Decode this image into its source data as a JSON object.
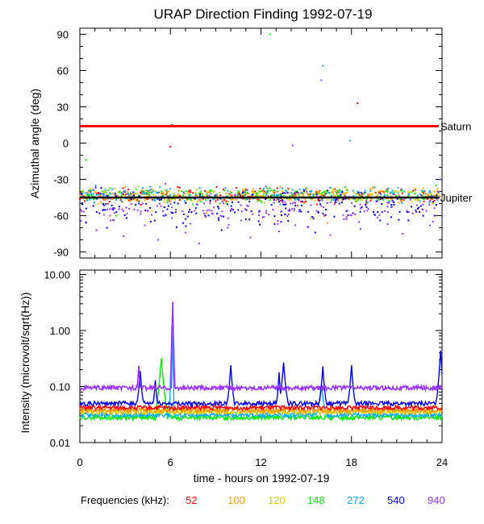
{
  "chart_data": [
    {
      "type": "scatter",
      "title": "URAP Direction Finding  1992-07-19",
      "ylabel": "Azimuthal angle (deg)",
      "xlim": [
        0,
        24
      ],
      "ylim": [
        -95,
        95
      ],
      "yticks": [
        90,
        60,
        30,
        0,
        -30,
        -60,
        -90
      ],
      "xticks": [
        0,
        6,
        12,
        18,
        24
      ],
      "reference_lines": [
        {
          "name": "Saturn",
          "value": 14,
          "color": "#ff0000"
        },
        {
          "name": "Jupiter",
          "value": -45,
          "color": "#000000"
        }
      ],
      "series": [
        {
          "name": "52",
          "color": "#ff0000",
          "points": [
            [
              0.3,
              -44
            ],
            [
              1.2,
              -42
            ],
            [
              2.1,
              -46
            ],
            [
              3.0,
              -40
            ],
            [
              3.8,
              -47
            ],
            [
              4.6,
              -43
            ],
            [
              5.5,
              -41
            ],
            [
              6.4,
              -45
            ],
            [
              7.3,
              -39
            ],
            [
              8.1,
              -44
            ],
            [
              9.0,
              -48
            ],
            [
              9.9,
              -42
            ],
            [
              10.8,
              -46
            ],
            [
              11.6,
              -40
            ],
            [
              12.5,
              -44
            ],
            [
              13.4,
              -47
            ],
            [
              14.3,
              -41
            ],
            [
              15.2,
              -45
            ],
            [
              16.0,
              -43
            ],
            [
              16.9,
              -38
            ],
            [
              17.8,
              -46
            ],
            [
              18.7,
              -44
            ],
            [
              19.6,
              -41
            ],
            [
              20.5,
              -45
            ],
            [
              21.3,
              -48
            ],
            [
              22.2,
              -42
            ],
            [
              23.1,
              -44
            ],
            [
              6.0,
              -3
            ],
            [
              18.4,
              33
            ],
            [
              16.2,
              -60
            ],
            [
              12.8,
              -55
            ]
          ]
        },
        {
          "name": "100",
          "color": "#ff9900",
          "points": [
            [
              0.5,
              -41
            ],
            [
              1.4,
              -45
            ],
            [
              2.3,
              -43
            ],
            [
              3.2,
              -47
            ],
            [
              4.1,
              -42
            ],
            [
              5.0,
              -44
            ],
            [
              5.9,
              -40
            ],
            [
              6.8,
              -46
            ],
            [
              7.7,
              -43
            ],
            [
              8.6,
              -41
            ],
            [
              9.5,
              -45
            ],
            [
              10.4,
              -47
            ],
            [
              11.2,
              -42
            ],
            [
              12.1,
              -44
            ],
            [
              13.0,
              -40
            ],
            [
              13.9,
              -46
            ],
            [
              14.8,
              -43
            ],
            [
              15.7,
              -41
            ],
            [
              16.5,
              -45
            ],
            [
              17.4,
              -42
            ],
            [
              18.3,
              -47
            ],
            [
              19.2,
              -44
            ],
            [
              20.1,
              -40
            ],
            [
              21.0,
              -46
            ],
            [
              21.8,
              -43
            ],
            [
              22.7,
              -41
            ],
            [
              23.6,
              -45
            ],
            [
              16.4,
              -66
            ],
            [
              8.4,
              -58
            ]
          ]
        },
        {
          "name": "120",
          "color": "#ddcc00",
          "points": [
            [
              0.8,
              -43
            ],
            [
              1.7,
              -40
            ],
            [
              2.6,
              -45
            ],
            [
              3.5,
              -42
            ],
            [
              4.4,
              -46
            ],
            [
              5.3,
              -41
            ],
            [
              6.2,
              -44
            ],
            [
              7.1,
              -47
            ],
            [
              8.0,
              -42
            ],
            [
              8.9,
              -40
            ],
            [
              9.7,
              -45
            ],
            [
              10.6,
              -43
            ],
            [
              11.5,
              -41
            ],
            [
              12.4,
              -46
            ],
            [
              13.3,
              -42
            ],
            [
              14.1,
              -44
            ],
            [
              15.0,
              -40
            ],
            [
              15.9,
              -47
            ],
            [
              16.8,
              -43
            ],
            [
              17.7,
              -41
            ],
            [
              18.5,
              -45
            ],
            [
              19.4,
              -42
            ],
            [
              20.3,
              -46
            ],
            [
              21.2,
              -44
            ],
            [
              22.1,
              -40
            ],
            [
              23.0,
              -45
            ],
            [
              23.8,
              -43
            ],
            [
              4.8,
              -56
            ],
            [
              15.3,
              -62
            ]
          ]
        },
        {
          "name": "148",
          "color": "#00ee00",
          "points": [
            [
              0.2,
              -40
            ],
            [
              1.0,
              -46
            ],
            [
              1.9,
              -43
            ],
            [
              2.8,
              -41
            ],
            [
              3.7,
              -45
            ],
            [
              4.5,
              -42
            ],
            [
              5.4,
              -47
            ],
            [
              6.3,
              -44
            ],
            [
              7.2,
              -40
            ],
            [
              8.2,
              -46
            ],
            [
              9.1,
              -43
            ],
            [
              10.0,
              -41
            ],
            [
              10.9,
              -45
            ],
            [
              11.8,
              -42
            ],
            [
              12.6,
              -47
            ],
            [
              13.5,
              -44
            ],
            [
              14.4,
              -40
            ],
            [
              15.3,
              -46
            ],
            [
              16.1,
              -43
            ],
            [
              17.0,
              -41
            ],
            [
              17.9,
              -45
            ],
            [
              18.8,
              -42
            ],
            [
              19.7,
              -47
            ],
            [
              20.6,
              -44
            ],
            [
              21.5,
              -40
            ],
            [
              22.4,
              -46
            ],
            [
              23.3,
              -43
            ],
            [
              12.6,
              90
            ],
            [
              0.4,
              -14
            ],
            [
              2.4,
              -60
            ]
          ]
        },
        {
          "name": "272",
          "color": "#00aaff",
          "points": [
            [
              0.6,
              -45
            ],
            [
              1.5,
              -42
            ],
            [
              2.4,
              -47
            ],
            [
              3.3,
              -44
            ],
            [
              4.2,
              -40
            ],
            [
              5.1,
              -46
            ],
            [
              6.0,
              -43
            ],
            [
              6.9,
              -41
            ],
            [
              7.8,
              -45
            ],
            [
              8.7,
              -42
            ],
            [
              9.6,
              -47
            ],
            [
              10.5,
              -44
            ],
            [
              11.4,
              -40
            ],
            [
              12.3,
              -46
            ],
            [
              13.1,
              -43
            ],
            [
              14.0,
              -41
            ],
            [
              14.9,
              -45
            ],
            [
              15.8,
              -42
            ],
            [
              16.7,
              -47
            ],
            [
              17.6,
              -44
            ],
            [
              18.4,
              -40
            ],
            [
              19.3,
              -46
            ],
            [
              20.2,
              -43
            ],
            [
              21.1,
              -41
            ],
            [
              22.0,
              -45
            ],
            [
              22.9,
              -42
            ],
            [
              23.7,
              -47
            ],
            [
              16.1,
              64
            ],
            [
              17.9,
              2
            ],
            [
              6.1,
              15
            ]
          ]
        },
        {
          "name": "540",
          "color": "#0000ee",
          "points": [
            [
              0.9,
              -52
            ],
            [
              1.3,
              -58
            ],
            [
              2.2,
              -55
            ],
            [
              3.1,
              -62
            ],
            [
              3.9,
              -48
            ],
            [
              4.7,
              -65
            ],
            [
              5.6,
              -53
            ],
            [
              6.5,
              -50
            ],
            [
              7.4,
              -57
            ],
            [
              8.3,
              -60
            ],
            [
              9.2,
              -54
            ],
            [
              10.1,
              -49
            ],
            [
              11.0,
              -63
            ],
            [
              11.9,
              -56
            ],
            [
              12.7,
              -51
            ],
            [
              13.6,
              -59
            ],
            [
              14.5,
              -47
            ],
            [
              15.4,
              -61
            ],
            [
              16.3,
              -55
            ],
            [
              17.2,
              -50
            ],
            [
              18.1,
              -58
            ],
            [
              19.0,
              -53
            ],
            [
              19.9,
              -64
            ],
            [
              20.8,
              -49
            ],
            [
              21.7,
              -57
            ],
            [
              22.6,
              -52
            ],
            [
              23.5,
              -60
            ],
            [
              1.8,
              -70
            ],
            [
              9.4,
              -72
            ],
            [
              15.6,
              -74
            ]
          ]
        },
        {
          "name": "940",
          "color": "#9933ff",
          "points": [
            [
              0.4,
              -66
            ],
            [
              1.1,
              -72
            ],
            [
              2.0,
              -60
            ],
            [
              2.9,
              -77
            ],
            [
              3.6,
              -55
            ],
            [
              4.3,
              -68
            ],
            [
              5.2,
              -80
            ],
            [
              6.1,
              -62
            ],
            [
              7.0,
              -74
            ],
            [
              7.9,
              -83
            ],
            [
              8.8,
              -58
            ],
            [
              9.8,
              -70
            ],
            [
              10.7,
              -64
            ],
            [
              11.3,
              -78
            ],
            [
              12.2,
              -61
            ],
            [
              13.2,
              -73
            ],
            [
              14.2,
              -56
            ],
            [
              15.1,
              -69
            ],
            [
              16.0,
              -52
            ],
            [
              16.6,
              -76
            ],
            [
              17.5,
              -63
            ],
            [
              18.6,
              -71
            ],
            [
              19.5,
              -59
            ],
            [
              20.4,
              -67
            ],
            [
              21.4,
              -75
            ],
            [
              22.3,
              -57
            ],
            [
              23.4,
              -65
            ],
            [
              16.0,
              52
            ],
            [
              14.1,
              -2
            ],
            [
              23.9,
              -30
            ]
          ]
        }
      ]
    },
    {
      "type": "line",
      "ylabel": "Intensity (microvolt/sqrt(Hz))",
      "xlabel": "time - hours on 1992-07-19",
      "xlim": [
        0,
        24
      ],
      "yscale": "log",
      "ylim": [
        0.01,
        12
      ],
      "yticks": [
        "10.00",
        "1.00",
        "0.10",
        "0.01"
      ],
      "xticks": [
        "0",
        "6",
        "12",
        "18",
        "24"
      ],
      "baselines": {
        "52": 0.042,
        "100": 0.038,
        "120": 0.035,
        "148": 0.028,
        "272": 0.031,
        "540": 0.05,
        "940": 0.095
      },
      "bursts": [
        {
          "series": "540",
          "hour": 4.0,
          "peak": 0.15,
          "width": 0.25
        },
        {
          "series": "540",
          "hour": 5.0,
          "peak": 0.09,
          "width": 0.2
        },
        {
          "series": "148",
          "hour": 5.4,
          "peak": 0.3,
          "width": 0.35
        },
        {
          "series": "272",
          "hour": 6.1,
          "peak": 1.2,
          "width": 0.12
        },
        {
          "series": "940",
          "hour": 6.15,
          "peak": 3.2,
          "width": 0.1
        },
        {
          "series": "940",
          "hour": 3.9,
          "peak": 0.16,
          "width": 0.15
        },
        {
          "series": "540",
          "hour": 10.0,
          "peak": 0.2,
          "width": 0.25
        },
        {
          "series": "540",
          "hour": 13.5,
          "peak": 0.23,
          "width": 0.3
        },
        {
          "series": "540",
          "hour": 13.2,
          "peak": 0.14,
          "width": 0.2
        },
        {
          "series": "540",
          "hour": 16.1,
          "peak": 0.19,
          "width": 0.25
        },
        {
          "series": "540",
          "hour": 18.0,
          "peak": 0.2,
          "width": 0.25
        },
        {
          "series": "540",
          "hour": 23.9,
          "peak": 0.4,
          "width": 0.25
        },
        {
          "series": "272",
          "hour": 16.0,
          "peak": 0.08,
          "width": 0.4
        }
      ]
    }
  ],
  "legend": {
    "label": "Frequencies (kHz):",
    "items": [
      {
        "name": "52",
        "color": "#ff0000"
      },
      {
        "name": "100",
        "color": "#ff9900"
      },
      {
        "name": "120",
        "color": "#ddcc00"
      },
      {
        "name": "148",
        "color": "#00ee00"
      },
      {
        "name": "272",
        "color": "#00aaff"
      },
      {
        "name": "540",
        "color": "#0000ee"
      },
      {
        "name": "940",
        "color": "#9933ff"
      }
    ]
  }
}
